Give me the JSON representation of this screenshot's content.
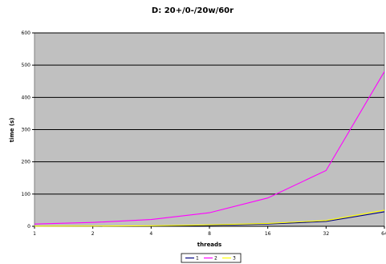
{
  "chart_data": {
    "type": "line",
    "title": "D: 20+/0-/20w/60r",
    "xlabel": "threads",
    "ylabel": "time (s)",
    "categories": [
      "1",
      "2",
      "4",
      "8",
      "16",
      "32",
      "64"
    ],
    "ylim": [
      0,
      600
    ],
    "yticks": [
      "0",
      "100",
      "200",
      "300",
      "400",
      "500",
      "600"
    ],
    "grid": true,
    "legend_position": "bottom",
    "series": [
      {
        "name": "1",
        "color": "#000080",
        "values": [
          0.3,
          0.6,
          1.2,
          3,
          7,
          15,
          45
        ]
      },
      {
        "name": "2",
        "color": "#ff00ff",
        "values": [
          7,
          12,
          21,
          42,
          88,
          173,
          480
        ]
      },
      {
        "name": "3",
        "color": "#ffff00",
        "values": [
          0.4,
          0.8,
          1.8,
          4.5,
          9,
          18,
          50
        ]
      }
    ],
    "colors": {
      "plot_background": "#c0c0c0",
      "gridline": "#000000"
    }
  }
}
